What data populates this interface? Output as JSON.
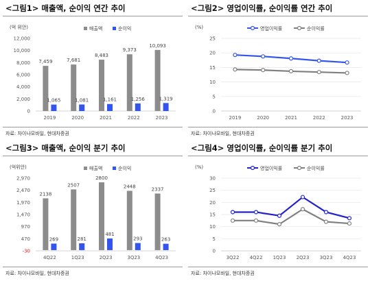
{
  "colors": {
    "revenue_bar": "#8c8c8c",
    "net_income_bar": "#3355ee",
    "op_margin_line": "#3355ee",
    "net_margin_line": "#7f7f7f",
    "quarter_op_margin_line": "#2222cc",
    "negative_tick": "#e02020"
  },
  "charts": [
    {
      "title": "<그림1> 매출액, 순이익 연간 추이",
      "source": "자료: 차이나모바일, 현대차증권",
      "chart_data": {
        "type": "bar",
        "unit_label": "(억 위안)",
        "categories": [
          "2019",
          "2020",
          "2021",
          "2022",
          "2023"
        ],
        "yticks": [
          "0",
          "2,000",
          "4,000",
          "6,000",
          "8,000",
          "10,000",
          "12,000"
        ],
        "ylim": [
          0,
          12000
        ],
        "series": [
          {
            "name": "매출액",
            "values": [
              7459,
              7681,
              8483,
              9373,
              10093
            ],
            "labels": [
              "7,459",
              "7,681",
              "8,483",
              "9,373",
              "10,093"
            ]
          },
          {
            "name": "순이익",
            "values": [
              1065,
              1081,
              1161,
              1256,
              1319
            ],
            "labels": [
              "1,065",
              "1,081",
              "1,161",
              "1,256",
              "1,319"
            ]
          }
        ],
        "legend": "top-center"
      }
    },
    {
      "title": "<그림2> 영업이익률, 순이익률 연간 추이",
      "source": "자료: 차이나모바일, 현대차증권",
      "chart_data": {
        "type": "line",
        "unit_label": "(%)",
        "categories": [
          "2019",
          "2020",
          "2021",
          "2022",
          "2023"
        ],
        "yticks": [
          "0",
          "5",
          "10",
          "15",
          "20",
          "25"
        ],
        "ylim": [
          0,
          25
        ],
        "series": [
          {
            "name": "영업이익률",
            "values": [
              19.3,
              18.8,
              18.1,
              17.3,
              16.7
            ]
          },
          {
            "name": "순이익률",
            "values": [
              14.3,
              14.1,
              13.7,
              13.4,
              13.1
            ]
          }
        ],
        "legend": "top-center"
      }
    },
    {
      "title": "<그림3> 매출액, 순이익 분기 추이",
      "source": "자료: 차이나모바일, 현대차증권",
      "chart_data": {
        "type": "bar",
        "unit_label": "(억위안)",
        "categories": [
          "4Q22",
          "1Q23",
          "2Q23",
          "3Q23",
          "4Q23"
        ],
        "yticks": [
          "-30",
          "470",
          "970",
          "1,470",
          "1,970",
          "2,470",
          "2,970"
        ],
        "ylim": [
          -30,
          2970
        ],
        "series": [
          {
            "name": "매출액",
            "values": [
              2138,
              2507,
              2800,
              2448,
              2337
            ],
            "labels": [
              "2138",
              "2507",
              "2800",
              "2448",
              "2337"
            ]
          },
          {
            "name": "순이익",
            "values": [
              269,
              281,
              481,
              293,
              263
            ],
            "labels": [
              "269",
              "281",
              "481",
              "293",
              "263"
            ]
          }
        ],
        "legend": "top-center"
      }
    },
    {
      "title": "<그림4> 영업이익률, 순이익률 분기 추이",
      "source": "자료: 차이나모바일, 현대차증권",
      "chart_data": {
        "type": "line",
        "unit_label": "(%)",
        "categories": [
          "3Q22",
          "4Q22",
          "1Q23",
          "2Q23",
          "3Q23",
          "4Q23"
        ],
        "yticks": [
          "0",
          "5",
          "10",
          "15",
          "20",
          "25",
          "30"
        ],
        "ylim": [
          0,
          30
        ],
        "series": [
          {
            "name": "영업이익률",
            "values": [
              16.0,
              16.0,
              14.5,
              22.2,
              16.0,
              13.5
            ]
          },
          {
            "name": "순이익률",
            "values": [
              12.5,
              12.5,
              11.0,
              17.2,
              12.0,
              11.3
            ]
          }
        ],
        "legend": "top-center"
      }
    }
  ]
}
